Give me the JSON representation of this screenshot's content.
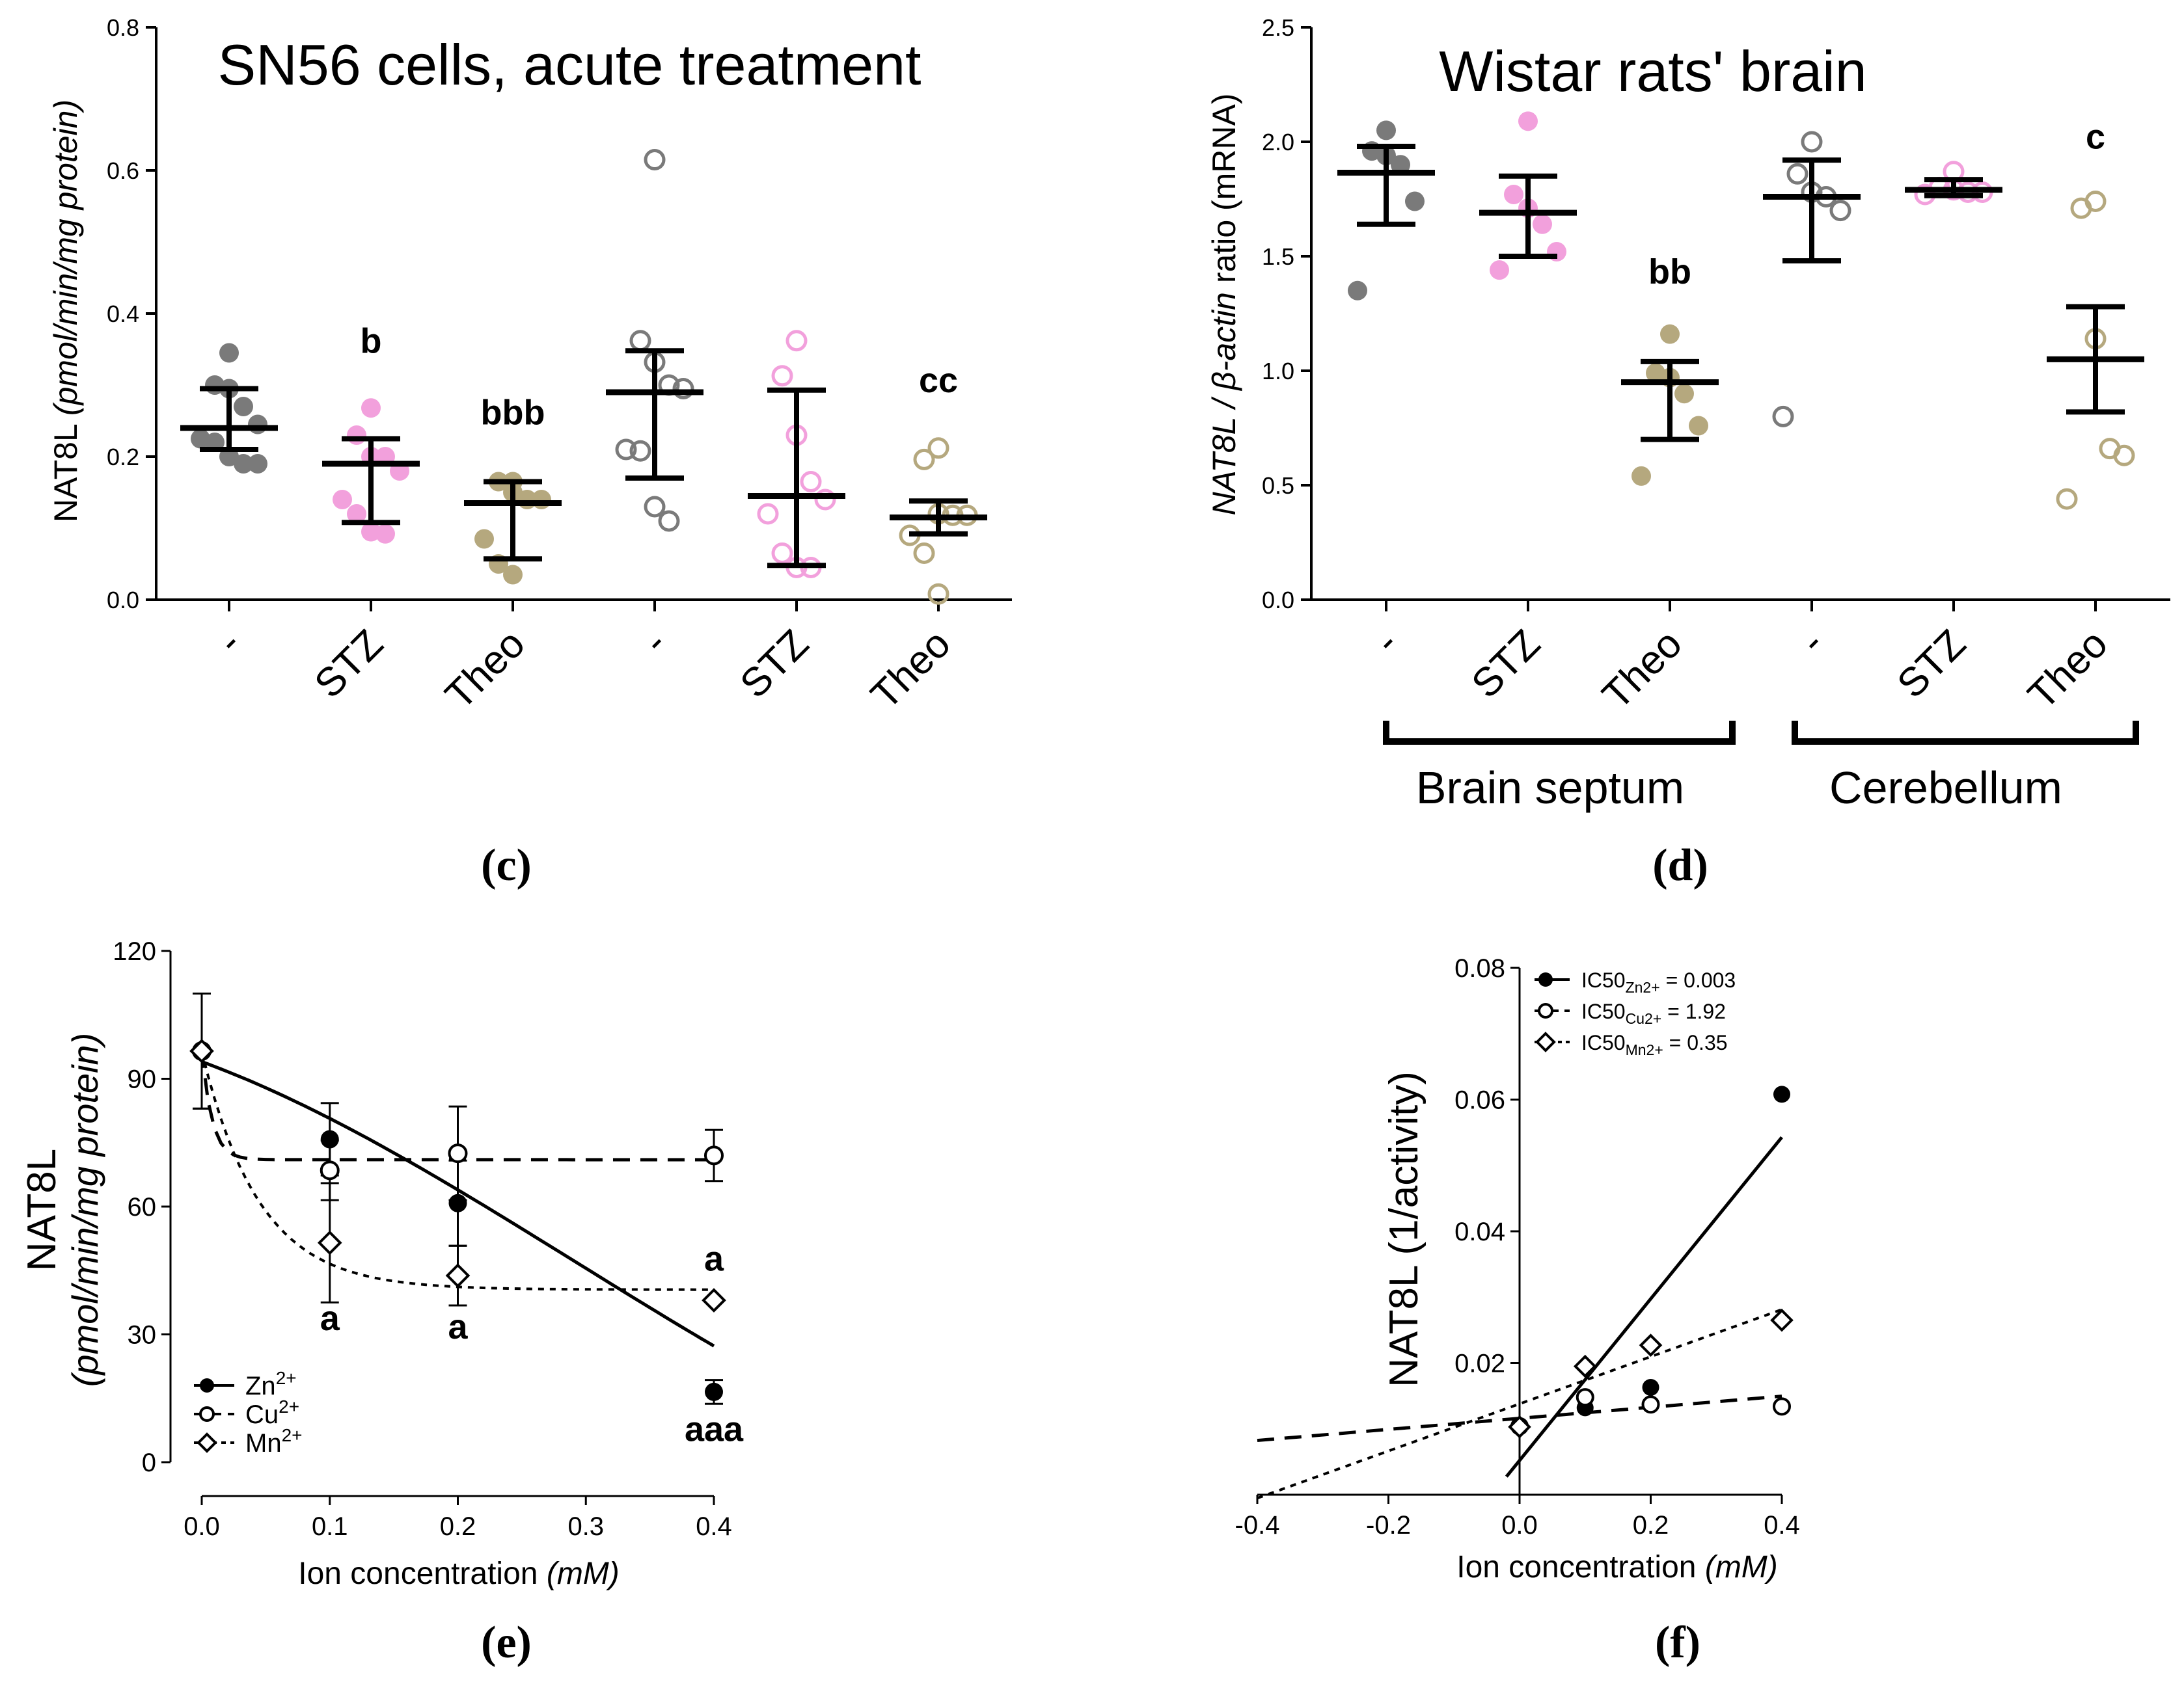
{
  "colors": {
    "ink": "#000000",
    "grey": "#7a7a7a",
    "pink": "#f2a0dc",
    "olive": "#b5a87e"
  },
  "chart_data": [
    {
      "id": "c",
      "type": "scatter",
      "panel_label": "(c)",
      "title": "SN56 cells, acute treatment",
      "ylabel_main": "NAT8L ",
      "ylabel_italic": "(pmol/min/mg protein)",
      "ylim": [
        0,
        0.8
      ],
      "yticks": [
        "0.0",
        "0.2",
        "0.4",
        "0.6",
        "0.8"
      ],
      "categories": [
        "-",
        "STZ",
        "Theo",
        "-",
        "STZ",
        "Theo"
      ],
      "groups": [
        {
          "name": "-",
          "fill": "grey",
          "filled": true,
          "mean": 0.24,
          "err": [
            0.21,
            0.295
          ],
          "points": [
            0.345,
            0.3,
            0.295,
            0.27,
            0.245,
            0.225,
            0.22,
            0.2,
            0.19,
            0.19
          ]
        },
        {
          "name": "STZ",
          "fill": "pink",
          "filled": true,
          "mean": 0.19,
          "err": [
            0.108,
            0.225
          ],
          "points": [
            0.268,
            0.23,
            0.2,
            0.2,
            0.18,
            0.14,
            0.12,
            0.095,
            0.092
          ]
        },
        {
          "name": "Theo",
          "fill": "olive",
          "filled": true,
          "mean": 0.135,
          "err": [
            0.057,
            0.165
          ],
          "points": [
            0.165,
            0.165,
            0.15,
            0.14,
            0.14,
            0.085,
            0.05,
            0.035
          ]
        },
        {
          "name": "-",
          "fill": "grey",
          "filled": false,
          "mean": 0.29,
          "err": [
            0.17,
            0.348
          ],
          "points": [
            0.615,
            0.362,
            0.332,
            0.3,
            0.295,
            0.21,
            0.208,
            0.13,
            0.11
          ]
        },
        {
          "name": "STZ",
          "fill": "pink",
          "filled": false,
          "mean": 0.145,
          "err": [
            0.048,
            0.293
          ],
          "points": [
            0.362,
            0.313,
            0.23,
            0.165,
            0.14,
            0.12,
            0.065,
            0.045,
            0.045
          ]
        },
        {
          "name": "Theo",
          "fill": "olive",
          "filled": false,
          "mean": 0.115,
          "err": [
            0.092,
            0.138
          ],
          "points": [
            0.212,
            0.196,
            0.118,
            0.12,
            0.118,
            0.09,
            0.065,
            0.008
          ]
        }
      ],
      "letters": [
        {
          "group": 1,
          "text": "b",
          "y": 0.345
        },
        {
          "group": 2,
          "text": "bbb",
          "y": 0.245
        },
        {
          "group": 5,
          "text": "cc",
          "y": 0.29
        }
      ]
    },
    {
      "id": "d",
      "type": "scatter",
      "panel_label": "(d)",
      "title": "Wistar rats' brain",
      "ylabel_parts": [
        "NAT8L / ",
        "β-actin",
        " ratio (mRNA)"
      ],
      "ylim": [
        0,
        2.5
      ],
      "yticks": [
        "0.0",
        "0.5",
        "1.0",
        "1.5",
        "2.0",
        "2.5"
      ],
      "categories": [
        "-",
        "STZ",
        "Theo",
        "-",
        "STZ",
        "Theo"
      ],
      "region_labels": [
        "Brain septum",
        "Cerebellum"
      ],
      "groups": [
        {
          "name": "-",
          "fill": "grey",
          "filled": true,
          "mean": 1.865,
          "err": [
            1.64,
            1.98
          ],
          "points": [
            2.05,
            1.96,
            1.94,
            1.9,
            1.74,
            1.35
          ]
        },
        {
          "name": "STZ",
          "fill": "pink",
          "filled": true,
          "mean": 1.69,
          "err": [
            1.5,
            1.85
          ],
          "points": [
            2.09,
            1.77,
            1.71,
            1.64,
            1.52,
            1.44
          ]
        },
        {
          "name": "Theo",
          "fill": "olive",
          "filled": true,
          "mean": 0.95,
          "err": [
            0.7,
            1.04
          ],
          "points": [
            1.16,
            0.99,
            0.97,
            0.9,
            0.76,
            0.54
          ]
        },
        {
          "name": "-",
          "fill": "grey",
          "filled": false,
          "mean": 1.76,
          "err": [
            1.48,
            1.92
          ],
          "points": [
            2.0,
            1.86,
            1.78,
            1.76,
            1.7,
            0.8
          ]
        },
        {
          "name": "STZ",
          "fill": "pink",
          "filled": false,
          "mean": 1.79,
          "err": [
            1.765,
            1.835
          ],
          "points": [
            1.87,
            1.79,
            1.8,
            1.78,
            1.77,
            1.78
          ]
        },
        {
          "name": "Theo",
          "fill": "olive",
          "filled": false,
          "mean": 1.05,
          "err": [
            0.82,
            1.28
          ],
          "points": [
            1.74,
            1.71,
            1.14,
            0.66,
            0.63,
            0.44
          ]
        }
      ],
      "letters": [
        {
          "group": 2,
          "text": "bb",
          "y": 1.38
        },
        {
          "group": 5,
          "text": "c",
          "y": 1.97
        }
      ]
    },
    {
      "id": "e",
      "type": "line",
      "panel_label": "(e)",
      "ylabel_main": "NAT8L",
      "ylabel_italic": "(pmol/min/mg protein)",
      "xlabel_main": "Ion concentration ",
      "xlabel_italic": "(mM)",
      "xlim": [
        0,
        0.4
      ],
      "ylim": [
        0,
        120
      ],
      "xticks": [
        "0.0",
        "0.1",
        "0.2",
        "0.3",
        "0.4"
      ],
      "yticks": [
        "0",
        "30",
        "60",
        "90",
        "120"
      ],
      "x": [
        0.0,
        0.1,
        0.2,
        0.4
      ],
      "series": [
        {
          "name": "Zn2+",
          "legend_base": "Zn",
          "legend_sup": "2+",
          "marker": "filled-circle",
          "dash": "solid",
          "values": [
            96.5,
            75.8,
            60.8,
            16.5
          ],
          "err": [
            13.5,
            8.5,
            10,
            2.8
          ],
          "fit": "zn"
        },
        {
          "name": "Cu2+",
          "legend_base": "Cu",
          "legend_sup": "2+",
          "marker": "open-circle",
          "dash": "long",
          "values": [
            96.5,
            68.5,
            72.5,
            72
          ],
          "err": [
            13.5,
            7,
            11,
            6
          ],
          "fit": "cu"
        },
        {
          "name": "Mn2+",
          "legend_base": "Mn",
          "legend_sup": "2+",
          "marker": "open-diamond",
          "dash": "short",
          "values": [
            96.5,
            51.5,
            43.8,
            38
          ],
          "err": [
            13.5,
            14,
            7,
            0
          ],
          "fit": "mn"
        }
      ],
      "letters": [
        {
          "x": 0.1,
          "y": 31,
          "text": "a"
        },
        {
          "x": 0.2,
          "y": 29,
          "text": "a"
        },
        {
          "x": 0.4,
          "y": 45,
          "text": "a"
        },
        {
          "x": 0.4,
          "y": 5,
          "text": "aaa"
        }
      ]
    },
    {
      "id": "f",
      "type": "line",
      "panel_label": "(f)",
      "ylabel": "NAT8L  (1/activity)",
      "xlabel_main": "Ion concentration ",
      "xlabel_italic": "(mM)",
      "xlim": [
        -0.4,
        0.4
      ],
      "ylim": [
        0,
        0.08
      ],
      "xticks": [
        "-0.4",
        "-0.2",
        "0.0",
        "0.2",
        "0.4"
      ],
      "yticks": [
        "0.02",
        "0.04",
        "0.06",
        "0.08"
      ],
      "x": [
        0.0,
        0.1,
        0.2,
        0.4
      ],
      "series": [
        {
          "name": "Zn2+",
          "legend_prefix": "IC50",
          "legend_sub": "Zn2+",
          "legend_suffix": " = 0.003",
          "marker": "filled-circle",
          "dash": "solid",
          "values": [
            0.0103,
            0.0132,
            0.0163,
            0.0608
          ],
          "line": [
            0.0052,
            0.1227
          ],
          "line_x": [
            -0.02,
            0.4
          ]
        },
        {
          "name": "Cu2+",
          "legend_prefix": "IC50",
          "legend_sub": "Cu2+",
          "legend_suffix": " = 1.92",
          "marker": "open-circle",
          "dash": "long",
          "values": [
            0.0104,
            0.0148,
            0.0137,
            0.0134
          ],
          "line": [
            0.0116,
            0.0084
          ],
          "line_x": [
            -0.4,
            0.4
          ]
        },
        {
          "name": "Mn2+",
          "legend_prefix": "IC50",
          "legend_sub": "Mn2+",
          "legend_suffix": " = 0.35",
          "marker": "open-diamond",
          "dash": "short",
          "values": [
            0.0103,
            0.0195,
            0.0227,
            0.0265
          ],
          "line": [
            0.0138,
            0.0358
          ],
          "line_x": [
            -0.4,
            0.4
          ]
        }
      ]
    }
  ]
}
